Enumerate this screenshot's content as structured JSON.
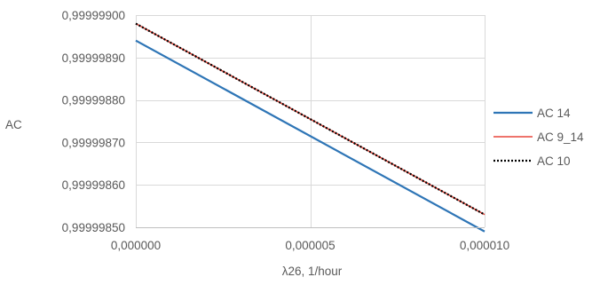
{
  "chart_data": {
    "type": "line",
    "xlabel": "λ26, 1/hour",
    "ylabel": "AC",
    "xlim": [
      0,
      1e-05
    ],
    "ylim": [
      0.9999985,
      0.999999
    ],
    "x_tick_values": [
      0,
      5e-06,
      1e-05
    ],
    "x_tick_labels": [
      "0,000000",
      "0,000005",
      "0,000010"
    ],
    "y_tick_values": [
      0.9999985,
      0.9999986,
      0.9999987,
      0.9999988,
      0.9999989,
      0.999999
    ],
    "y_tick_labels": [
      "0,99999850",
      "0,99999860",
      "0,99999870",
      "0,99999880",
      "0,99999890",
      "0,99999900"
    ],
    "grid": true,
    "legend_position": "right",
    "series": [
      {
        "name": "AC 14",
        "color": "#2E75B6",
        "style": "solid",
        "x": [
          0,
          1e-05
        ],
        "y": [
          0.99999894,
          0.99999849
        ]
      },
      {
        "name": "AC 9_14",
        "color": "#E8473B",
        "style": "solid",
        "x": [
          0,
          1e-05
        ],
        "y": [
          0.99999898,
          0.99999853
        ]
      },
      {
        "name": "AC 10",
        "color": "#000000",
        "style": "dotted",
        "x": [
          0,
          1e-05
        ],
        "y": [
          0.99999898,
          0.99999853
        ]
      }
    ]
  }
}
